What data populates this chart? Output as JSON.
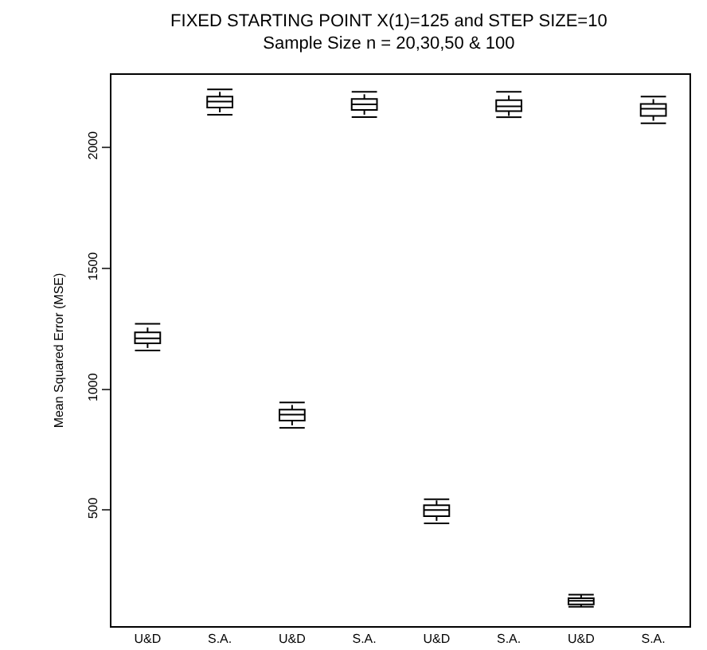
{
  "chart_data": {
    "type": "box",
    "title": "FIXED STARTING POINT X(1)=125 and STEP SIZE=10",
    "subtitle": "Sample Size n = 20,30,50 & 100",
    "ylabel": "Mean Squared Error (MSE)",
    "categories": [
      "U&D",
      "S.A.",
      "U&D",
      "S.A.",
      "U&D",
      "S.A.",
      "U&D",
      "S.A."
    ],
    "boxes": [
      {
        "low": 1160,
        "q1": 1190,
        "median": 1210,
        "q3": 1235,
        "high": 1270
      },
      {
        "low": 2135,
        "q1": 2165,
        "median": 2190,
        "q3": 2210,
        "high": 2240
      },
      {
        "low": 840,
        "q1": 870,
        "median": 895,
        "q3": 915,
        "high": 945
      },
      {
        "low": 2125,
        "q1": 2155,
        "median": 2178,
        "q3": 2200,
        "high": 2230
      },
      {
        "low": 445,
        "q1": 475,
        "median": 500,
        "q3": 520,
        "high": 545
      },
      {
        "low": 2125,
        "q1": 2150,
        "median": 2170,
        "q3": 2195,
        "high": 2230
      },
      {
        "low": 100,
        "q1": 110,
        "median": 125,
        "q3": 135,
        "high": 150
      },
      {
        "low": 2100,
        "q1": 2130,
        "median": 2160,
        "q3": 2180,
        "high": 2210
      }
    ],
    "color": "#000000",
    "ylim": [
      20,
      2300
    ],
    "yticks": [
      500,
      1000,
      1500,
      2000
    ]
  }
}
